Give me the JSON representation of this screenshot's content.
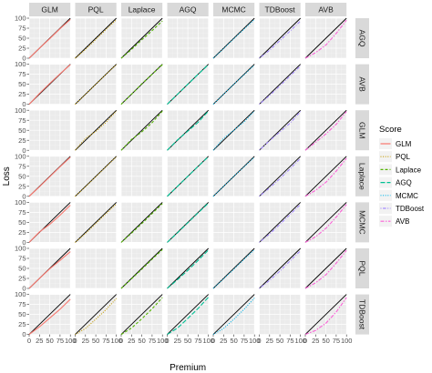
{
  "chart_data": {
    "type": "line",
    "xlabel": "Premium",
    "ylabel": "Loss",
    "xlim": [
      0,
      100
    ],
    "ylim": [
      0,
      100
    ],
    "xticks": [
      0,
      25,
      50,
      75,
      100
    ],
    "yticks": [
      0,
      25,
      50,
      75,
      100
    ],
    "grid": true,
    "col_facets": [
      "GLM",
      "PQL",
      "Laplace",
      "AGQ",
      "MCMC",
      "TDBoost",
      "AVB"
    ],
    "row_facets": [
      "AGQ",
      "AVB",
      "GLM",
      "Laplace",
      "MCMC",
      "PQL",
      "TDBoost"
    ],
    "reference_line": {
      "x": [
        0,
        100
      ],
      "y": [
        0,
        100
      ],
      "color": "#000000"
    },
    "legend": {
      "title": "Score",
      "position": "right"
    },
    "series": [
      {
        "name": "GLM",
        "color": "#F8766D",
        "dash": "solid"
      },
      {
        "name": "PQL",
        "color": "#C49A00",
        "dash": "dotted"
      },
      {
        "name": "Laplace",
        "color": "#53B400",
        "dash": "dashed"
      },
      {
        "name": "AGQ",
        "color": "#00C094",
        "dash": "longdash"
      },
      {
        "name": "MCMC",
        "color": "#00B6EB",
        "dash": "dotted"
      },
      {
        "name": "TDBoost",
        "color": "#A58AFF",
        "dash": "dotdash"
      },
      {
        "name": "AVB",
        "color": "#FB61D7",
        "dash": "twodash"
      }
    ],
    "x": [
      0,
      25,
      50,
      75,
      100
    ],
    "panels": [
      {
        "row": "AGQ",
        "col": "GLM",
        "y": [
          0,
          25,
          49,
          74,
          97
        ]
      },
      {
        "row": "AGQ",
        "col": "PQL",
        "y": [
          0,
          22,
          47,
          72,
          96
        ]
      },
      {
        "row": "AGQ",
        "col": "Laplace",
        "y": [
          0,
          22,
          46,
          69,
          93
        ]
      },
      {
        "row": "AGQ",
        "col": "MCMC",
        "y": [
          0,
          24,
          49,
          73,
          97
        ]
      },
      {
        "row": "AGQ",
        "col": "TDBoost",
        "y": [
          0,
          20,
          44,
          68,
          93
        ]
      },
      {
        "row": "AGQ",
        "col": "AVB",
        "y": [
          0,
          14,
          33,
          62,
          95
        ]
      },
      {
        "row": "AVB",
        "col": "GLM",
        "y": [
          0,
          27,
          52,
          76,
          99
        ]
      },
      {
        "row": "AVB",
        "col": "PQL",
        "y": [
          0,
          25,
          50,
          75,
          99
        ]
      },
      {
        "row": "AVB",
        "col": "Laplace",
        "y": [
          0,
          25,
          51,
          75,
          99
        ]
      },
      {
        "row": "AVB",
        "col": "AGQ",
        "y": [
          0,
          25,
          50,
          75,
          99
        ]
      },
      {
        "row": "AVB",
        "col": "MCMC",
        "y": [
          0,
          25,
          50,
          74,
          98
        ]
      },
      {
        "row": "AVB",
        "col": "TDBoost",
        "y": [
          0,
          22,
          46,
          71,
          96
        ]
      },
      {
        "row": "GLM",
        "col": "PQL",
        "y": [
          0,
          30,
          47,
          70,
          98
        ]
      },
      {
        "row": "GLM",
        "col": "Laplace",
        "y": [
          0,
          27,
          46,
          69,
          98
        ]
      },
      {
        "row": "GLM",
        "col": "AGQ",
        "y": [
          0,
          26,
          48,
          70,
          98
        ]
      },
      {
        "row": "GLM",
        "col": "MCMC",
        "y": [
          0,
          30,
          50,
          71,
          98
        ]
      },
      {
        "row": "GLM",
        "col": "TDBoost",
        "y": [
          0,
          24,
          46,
          68,
          97
        ]
      },
      {
        "row": "GLM",
        "col": "AVB",
        "y": [
          0,
          20,
          41,
          65,
          97
        ]
      },
      {
        "row": "Laplace",
        "col": "GLM",
        "y": [
          0,
          24,
          49,
          74,
          98
        ]
      },
      {
        "row": "Laplace",
        "col": "PQL",
        "y": [
          0,
          24,
          49,
          74,
          99
        ]
      },
      {
        "row": "Laplace",
        "col": "AGQ",
        "y": [
          0,
          25,
          50,
          75,
          99
        ]
      },
      {
        "row": "Laplace",
        "col": "MCMC",
        "y": [
          0,
          25,
          50,
          74,
          98
        ]
      },
      {
        "row": "Laplace",
        "col": "TDBoost",
        "y": [
          0,
          21,
          44,
          69,
          95
        ]
      },
      {
        "row": "Laplace",
        "col": "AVB",
        "y": [
          0,
          15,
          35,
          63,
          95
        ]
      },
      {
        "row": "MCMC",
        "col": "GLM",
        "y": [
          0,
          26,
          45,
          68,
          93
        ]
      },
      {
        "row": "MCMC",
        "col": "PQL",
        "y": [
          0,
          22,
          47,
          72,
          96
        ]
      },
      {
        "row": "MCMC",
        "col": "Laplace",
        "y": [
          0,
          23,
          47,
          72,
          97
        ]
      },
      {
        "row": "MCMC",
        "col": "AGQ",
        "y": [
          0,
          24,
          49,
          74,
          98
        ]
      },
      {
        "row": "MCMC",
        "col": "TDBoost",
        "y": [
          0,
          21,
          45,
          70,
          95
        ]
      },
      {
        "row": "MCMC",
        "col": "AVB",
        "y": [
          0,
          14,
          35,
          63,
          95
        ]
      },
      {
        "row": "PQL",
        "col": "GLM",
        "y": [
          0,
          25,
          49,
          70,
          92
        ]
      },
      {
        "row": "PQL",
        "col": "Laplace",
        "y": [
          0,
          24,
          48,
          73,
          97
        ]
      },
      {
        "row": "PQL",
        "col": "AGQ",
        "y": [
          0,
          22,
          45,
          70,
          96
        ]
      },
      {
        "row": "PQL",
        "col": "MCMC",
        "y": [
          0,
          24,
          48,
          73,
          97
        ]
      },
      {
        "row": "PQL",
        "col": "TDBoost",
        "y": [
          0,
          20,
          43,
          69,
          94
        ]
      },
      {
        "row": "PQL",
        "col": "AVB",
        "y": [
          0,
          14,
          34,
          63,
          95
        ]
      },
      {
        "row": "TDBoost",
        "col": "GLM",
        "y": [
          0,
          19,
          41,
          63,
          88
        ]
      },
      {
        "row": "TDBoost",
        "col": "PQL",
        "y": [
          0,
          15,
          38,
          62,
          90
        ]
      },
      {
        "row": "TDBoost",
        "col": "Laplace",
        "y": [
          0,
          16,
          39,
          64,
          92
        ]
      },
      {
        "row": "TDBoost",
        "col": "AGQ",
        "y": [
          0,
          16,
          40,
          65,
          93
        ]
      },
      {
        "row": "TDBoost",
        "col": "MCMC",
        "y": [
          0,
          15,
          38,
          63,
          91
        ]
      },
      {
        "row": "TDBoost",
        "col": "AVB",
        "y": [
          0,
          10,
          28,
          56,
          92
        ]
      }
    ]
  }
}
